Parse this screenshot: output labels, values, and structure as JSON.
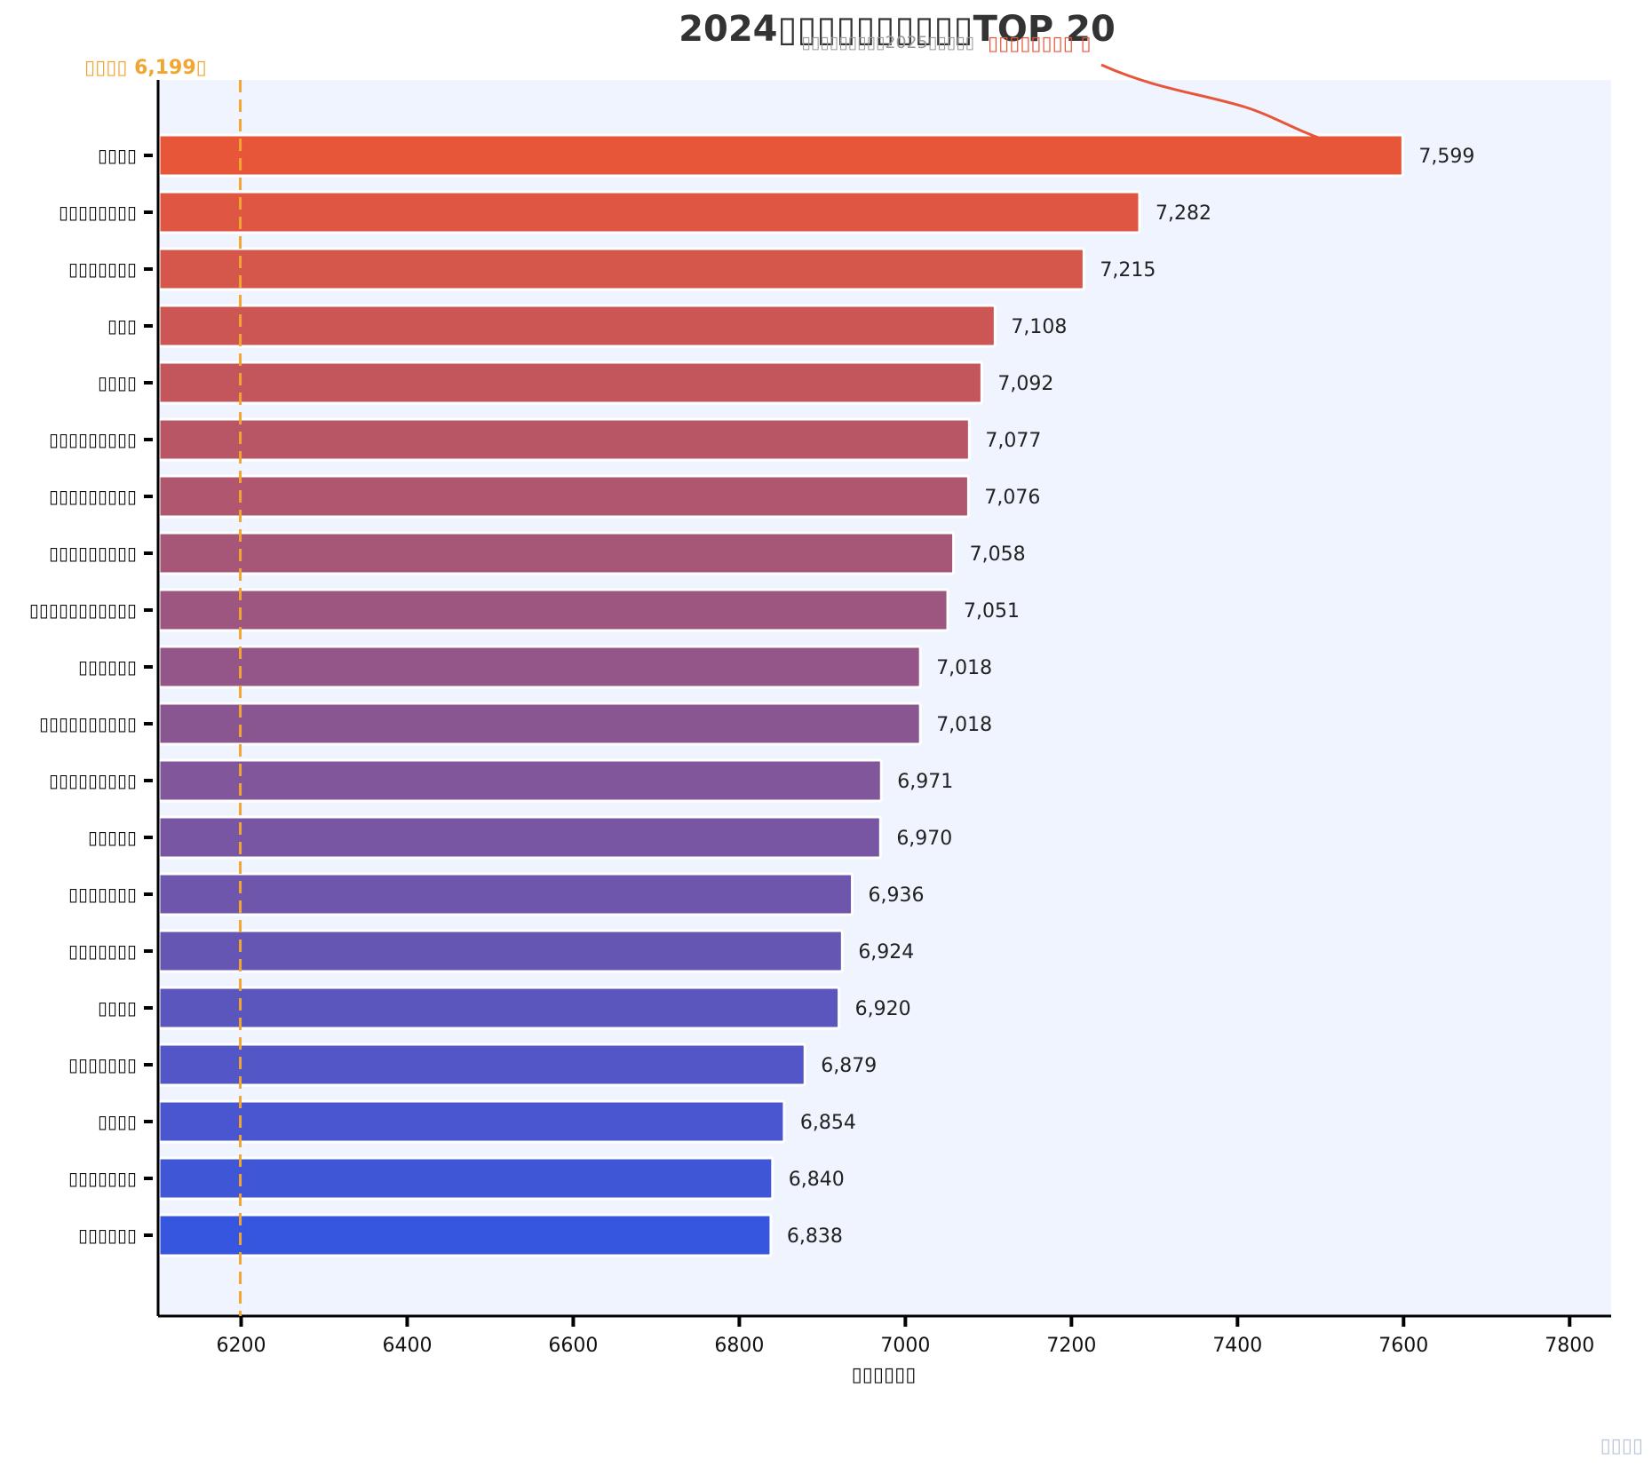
{
  "chart_data": {
    "type": "bar",
    "orientation": "horizontal",
    "title": "2024▯▯▯▯▯▯▯▯▯▯TOP 20",
    "subtitle": "▯▯▯▯▯▯▯▯▯2025▯▯▯▯▯",
    "highlight_note": "▯▯▯▯▯▯▯▯ ▯",
    "categories": [
      "▯▯▯▯",
      "▯▯▯▯▯▯▯▯",
      "▯▯▯▯▯▯▯",
      "▯▯▯",
      "▯▯▯▯",
      "▯▯▯▯▯▯▯▯▯",
      "▯▯▯▯▯▯▯▯▯",
      "▯▯▯▯▯▯▯▯▯",
      "▯▯▯▯▯▯▯▯▯▯▯",
      "▯▯▯▯▯▯",
      "▯▯▯▯▯▯▯▯▯▯",
      "▯▯▯▯▯▯▯▯▯",
      "▯▯▯▯▯",
      "▯▯▯▯▯▯▯",
      "▯▯▯▯▯▯▯",
      "▯▯▯▯",
      "▯▯▯▯▯▯▯",
      "▯▯▯▯",
      "▯▯▯▯▯▯▯",
      "▯▯▯▯▯▯"
    ],
    "values": [
      7599,
      7282,
      7215,
      7108,
      7092,
      7077,
      7076,
      7058,
      7051,
      7018,
      7018,
      6971,
      6970,
      6936,
      6924,
      6920,
      6879,
      6854,
      6840,
      6838
    ],
    "value_labels": [
      "7,599",
      "7,282",
      "7,215",
      "7,108",
      "7,092",
      "7,077",
      "7,076",
      "7,058",
      "7,051",
      "7,018",
      "7,018",
      "6,971",
      "6,970",
      "6,936",
      "6,924",
      "6,920",
      "6,879",
      "6,854",
      "6,840",
      "6,838"
    ],
    "xlabel": "▯▯▯▯▯▯",
    "xlim": [
      6100,
      7850
    ],
    "xticks": [
      6200,
      6400,
      6600,
      6800,
      7000,
      7200,
      7400,
      7600,
      7800
    ],
    "xtick_labels": [
      "6200",
      "6400",
      "6600",
      "6800",
      "7000",
      "7200",
      "7400",
      "7600",
      "7800"
    ],
    "average_line": {
      "value": 6199,
      "label": "▯▯▯▯ 6,199▯",
      "color": "#f2a531"
    },
    "colors": {
      "start": "#e8563a",
      "end": "#3656e0",
      "plot_background": "#eff4ff",
      "annotation": "#e8563a"
    },
    "grid": false,
    "watermark": "▯▯▯▯"
  }
}
